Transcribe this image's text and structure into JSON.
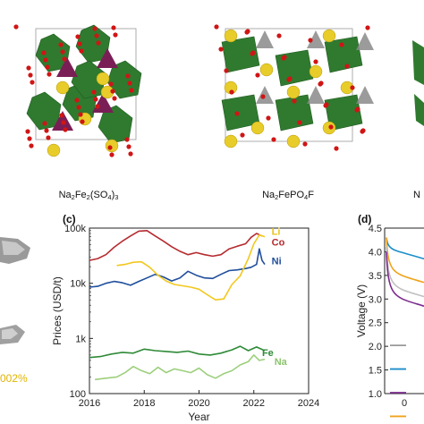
{
  "structures": [
    {
      "formula_parts": [
        "Na",
        "2",
        "Fe",
        "2",
        "(SO",
        "4",
        ")",
        "3"
      ]
    },
    {
      "formula_parts": [
        "Na",
        "2",
        "FePO",
        "4",
        "F"
      ]
    },
    {
      "formula_parts": [
        "N"
      ]
    }
  ],
  "panel_c_label": "(c)",
  "panel_d_label": "(d)",
  "left_fragment_text": "002%",
  "chart_data": [
    {
      "panel": "c",
      "type": "line",
      "xlabel": "Year",
      "ylabel": "Prices (USD/t)",
      "yscale": "log",
      "xlim": [
        2016,
        2024
      ],
      "ylim": [
        100,
        100000
      ],
      "xticks": [
        2016,
        2018,
        2020,
        2022,
        2024
      ],
      "yticks": [
        {
          "v": 100,
          "label": "100"
        },
        {
          "v": 1000,
          "label": "1k"
        },
        {
          "v": 10000,
          "label": "10k"
        },
        {
          "v": 100000,
          "label": "100k"
        }
      ],
      "series": [
        {
          "name": "Co",
          "color": "#b52b30",
          "x": [
            2016.0,
            2016.3,
            2016.6,
            2016.9,
            2017.2,
            2017.5,
            2017.8,
            2018.1,
            2018.4,
            2018.7,
            2019.0,
            2019.3,
            2019.6,
            2019.9,
            2020.2,
            2020.5,
            2020.8,
            2021.1,
            2021.4,
            2021.7,
            2021.9,
            2022.1,
            2022.3
          ],
          "y": [
            26000,
            28000,
            33000,
            45000,
            58000,
            72000,
            88000,
            90000,
            72000,
            58000,
            46000,
            38000,
            33000,
            36000,
            33000,
            31000,
            33000,
            42000,
            47000,
            52000,
            68000,
            80000,
            72000
          ]
        },
        {
          "name": "Ni",
          "color": "#1f4e9c",
          "x": [
            2016.0,
            2016.3,
            2016.6,
            2016.9,
            2017.2,
            2017.5,
            2017.8,
            2018.1,
            2018.4,
            2018.7,
            2019.0,
            2019.3,
            2019.6,
            2019.9,
            2020.2,
            2020.5,
            2020.8,
            2021.1,
            2021.4,
            2021.7,
            2021.9,
            2022.1,
            2022.2,
            2022.3,
            2022.4
          ],
          "y": [
            8500,
            8800,
            10000,
            10800,
            10200,
            9200,
            10800,
            12500,
            14500,
            13000,
            11000,
            12500,
            16500,
            14000,
            12500,
            12200,
            14500,
            17000,
            17500,
            18500,
            19500,
            22000,
            42000,
            26000,
            22000
          ]
        },
        {
          "name": "Li",
          "color": "#f2c81e",
          "x": [
            2017.0,
            2017.3,
            2017.6,
            2017.9,
            2018.2,
            2018.5,
            2018.8,
            2019.1,
            2019.4,
            2019.7,
            2020.0,
            2020.3,
            2020.6,
            2020.9,
            2021.2,
            2021.5,
            2021.8,
            2022.0,
            2022.2,
            2022.4
          ],
          "y": [
            21000,
            22000,
            24000,
            24500,
            19500,
            14000,
            11000,
            9500,
            9000,
            8500,
            7800,
            6200,
            5000,
            5200,
            9500,
            13500,
            28000,
            52000,
            75000,
            70000
          ]
        },
        {
          "name": "Fe",
          "color": "#2e8a37",
          "x": [
            2016.0,
            2016.4,
            2016.8,
            2017.2,
            2017.6,
            2018.0,
            2018.4,
            2018.8,
            2019.2,
            2019.6,
            2020.0,
            2020.4,
            2020.8,
            2021.2,
            2021.5,
            2021.8,
            2022.1,
            2022.4
          ],
          "y": [
            450,
            470,
            520,
            560,
            540,
            640,
            600,
            580,
            560,
            590,
            520,
            500,
            540,
            620,
            720,
            600,
            700,
            600
          ]
        },
        {
          "name": "Na",
          "color": "#9ccf7c",
          "x": [
            2016.2,
            2016.6,
            2017.0,
            2017.3,
            2017.6,
            2017.9,
            2018.2,
            2018.5,
            2018.8,
            2019.1,
            2019.4,
            2019.7,
            2020.0,
            2020.3,
            2020.6,
            2020.9,
            2021.2,
            2021.5,
            2021.8,
            2022.0,
            2022.2,
            2022.4
          ],
          "y": [
            180,
            190,
            200,
            240,
            310,
            260,
            230,
            300,
            240,
            280,
            260,
            240,
            290,
            220,
            190,
            230,
            260,
            330,
            380,
            500,
            400,
            420
          ]
        }
      ],
      "series_label_colors": {
        "Li": "#e8c21a",
        "Co": "#b52b30",
        "Ni": "#1f4e9c",
        "Fe": "#2e8a37",
        "Na": "#8cc46c"
      }
    },
    {
      "panel": "d",
      "type": "line",
      "ylabel": "Voltage (V)",
      "ylim": [
        1.0,
        4.5
      ],
      "yticks": [
        "1.0",
        "1.5",
        "2.0",
        "2.5",
        "3.0",
        "3.5",
        "4.0",
        "4.5"
      ],
      "xticks": [
        "0"
      ],
      "series": [
        {
          "color": "#1b8ec9",
          "y_start": 4.3,
          "y_plateau": 4.0
        },
        {
          "color": "#f0a31c",
          "y_start": 4.3,
          "y_plateau": 3.5
        },
        {
          "color": "#c0c0c0",
          "y_start": 4.1,
          "y_plateau": 3.2
        },
        {
          "color": "#7b2b8f",
          "y_start": 4.0,
          "y_plateau": 3.0
        }
      ],
      "legend_colors": [
        "#999999",
        "#1b8ec9",
        "#7b2b8f",
        "#f0a31c"
      ]
    }
  ],
  "colors": {
    "octahedra": "#2f7a2f",
    "tetra_so4": "#7a1f56",
    "tetra_po4": "#8a8a8a",
    "na": "#e8cc2a",
    "oxygen": "#d01515"
  }
}
